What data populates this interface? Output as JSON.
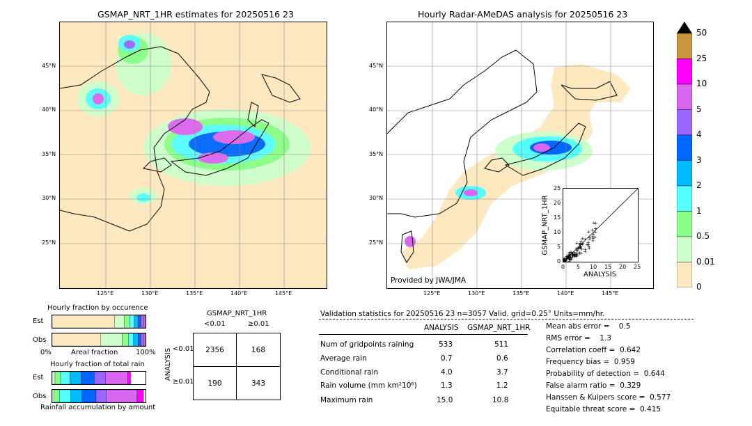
{
  "left_map": {
    "title": "GSMAP_NRT_1HR estimates for 20250516 23",
    "lat_labels": [
      "45°N",
      "40°N",
      "35°N",
      "30°N",
      "25°N"
    ],
    "lon_labels": [
      "125°E",
      "130°E",
      "135°E",
      "140°E",
      "145°E"
    ]
  },
  "right_map": {
    "title": "Hourly Radar-AMeDAS analysis for 20250516 23",
    "lat_labels": [
      "45°N",
      "40°N",
      "35°N",
      "30°N",
      "25°N"
    ],
    "lon_labels": [
      "125°E",
      "130°E",
      "135°E",
      "140°E",
      "145°E"
    ],
    "credit": "Provided by JWA/JMA"
  },
  "colorbar": {
    "labels": [
      "50",
      "25",
      "10",
      "5",
      "4",
      "3",
      "2",
      "1",
      "0.5",
      "0.01",
      "0"
    ],
    "colors": [
      "#c8943c",
      "#ff00ff",
      "#d966f0",
      "#9966ff",
      "#0066ff",
      "#00bbff",
      "#55ffff",
      "#88ff88",
      "#ccffcc",
      "#fde8c0"
    ]
  },
  "scatter": {
    "xlabel": "ANALYSIS",
    "ylabel": "GSMAP_NRT_1HR",
    "ticks": [
      "0",
      "5",
      "10",
      "15",
      "20",
      "25"
    ]
  },
  "occurrence": {
    "title": "Hourly fraction by occurence",
    "row_labels": [
      "Est",
      "Obs"
    ],
    "axis_left": "0%",
    "axis_mid": "Areal fraction",
    "axis_right": "100%"
  },
  "total_rain": {
    "title": "Hourly fraction of total rain",
    "row_labels": [
      "Est",
      "Obs"
    ],
    "footer": "Rainfall accumulation by amount"
  },
  "contingency": {
    "title": "GSMAP_NRT_1HR",
    "col_labels": [
      "<0.01",
      "≥0.01"
    ],
    "row_axis": "ANALYSIS",
    "row_labels": [
      "<0.01",
      "≥0.01"
    ],
    "cells": [
      [
        "2356",
        "168"
      ],
      [
        "190",
        "343"
      ]
    ]
  },
  "validation": {
    "header": "Validation statistics for 20250516 23  n=3057 Valid. grid=0.25° Units=mm/hr.",
    "col_headers": [
      "ANALYSIS",
      "GSMAP_NRT_1HR"
    ],
    "rows": [
      {
        "label": "Num of gridpoints raining",
        "a": "533",
        "g": "511"
      },
      {
        "label": "Average rain",
        "a": "0.7",
        "g": "0.6"
      },
      {
        "label": "Conditional rain",
        "a": "4.0",
        "g": "3.7"
      },
      {
        "label": "Rain volume (mm km²10⁶)",
        "a": "1.3",
        "g": "1.2"
      },
      {
        "label": "Maximum rain",
        "a": "15.0",
        "g": "10.8"
      }
    ],
    "scores": [
      "Mean abs error =    0.5",
      "RMS error =    1.3",
      "Correlation coeff =  0.642",
      "Frequency bias =  0.959",
      "Probability of detection =  0.644",
      "False alarm ratio =  0.329",
      "Hanssen & Kuipers score =  0.577",
      "Equitable threat score =  0.415"
    ]
  }
}
